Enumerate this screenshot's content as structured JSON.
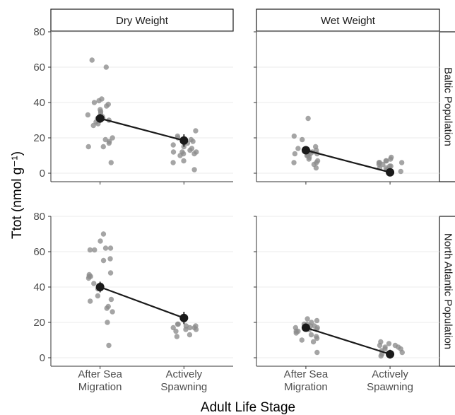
{
  "chart_data": {
    "type": "scatter",
    "xlabel": "Adult Life Stage",
    "ylabel": "Ttot (nmol g⁻¹)",
    "categories": [
      "After Sea Migration",
      "Actively Spawning"
    ],
    "category_lines": [
      [
        "After Sea",
        "Migration"
      ],
      [
        "Actively",
        "Spawning"
      ]
    ],
    "columns": [
      "Dry Weight",
      "Wet Weight"
    ],
    "rows": [
      "Baltic Population",
      "North Atlantic Population"
    ],
    "ylim": [
      0,
      80
    ],
    "yticks": [
      0,
      20,
      40,
      60,
      80
    ],
    "grid": true,
    "panels": [
      {
        "column": "Dry Weight",
        "row": "Baltic Population",
        "mean": [
          31,
          18.5
        ],
        "error": [
          2.5,
          3.5
        ],
        "points": [
          [
            64,
            60,
            42,
            41,
            40,
            39,
            38,
            36,
            35,
            34,
            33,
            32,
            31,
            31,
            30,
            29,
            28,
            27,
            20,
            19,
            18,
            17,
            15,
            15,
            6
          ],
          [
            24,
            21,
            20,
            19,
            18,
            17,
            16,
            15,
            14,
            13,
            12,
            12,
            12,
            11,
            11,
            10,
            7,
            6,
            2
          ]
        ]
      },
      {
        "column": "Wet Weight",
        "row": "Baltic Population",
        "mean": [
          13,
          0.5
        ],
        "error": [
          2,
          1.5
        ],
        "points": [
          [
            31,
            21,
            19,
            15,
            14,
            13,
            12,
            12,
            11,
            11,
            11,
            10,
            10,
            9,
            8,
            7,
            6,
            6,
            5,
            3
          ],
          [
            9,
            8,
            7,
            7,
            6,
            6,
            6,
            5,
            5,
            4,
            4,
            3,
            3,
            2,
            1
          ]
        ]
      },
      {
        "column": "Dry Weight",
        "row": "North Atlantic Population",
        "mean": [
          40,
          22.5
        ],
        "error": [
          3,
          3.5
        ],
        "points": [
          [
            70,
            66,
            62,
            62,
            61,
            61,
            56,
            55,
            48,
            47,
            46,
            46,
            45,
            42,
            41,
            40,
            39,
            35,
            33,
            32,
            29,
            28,
            26,
            20,
            7
          ],
          [
            19,
            19,
            18,
            18,
            17,
            17,
            17,
            16,
            16,
            15,
            13,
            12
          ]
        ]
      },
      {
        "column": "Wet Weight",
        "row": "North Atlantic Population",
        "mean": [
          17,
          2
        ],
        "error": [
          2,
          2.5
        ],
        "points": [
          [
            22,
            21,
            20,
            19,
            19,
            18,
            18,
            17,
            17,
            16,
            16,
            15,
            15,
            14,
            13,
            12,
            11,
            10,
            9,
            3
          ],
          [
            9,
            8,
            7,
            7,
            6,
            6,
            5,
            5,
            4,
            3,
            2,
            1
          ]
        ]
      }
    ]
  },
  "colors": {
    "point": "#8c8c8c",
    "mean": "#1a1a1a",
    "line": "#1a1a1a",
    "grid": "#ebebeb",
    "strip_fill": "#ffffff",
    "axis": "#333333"
  }
}
